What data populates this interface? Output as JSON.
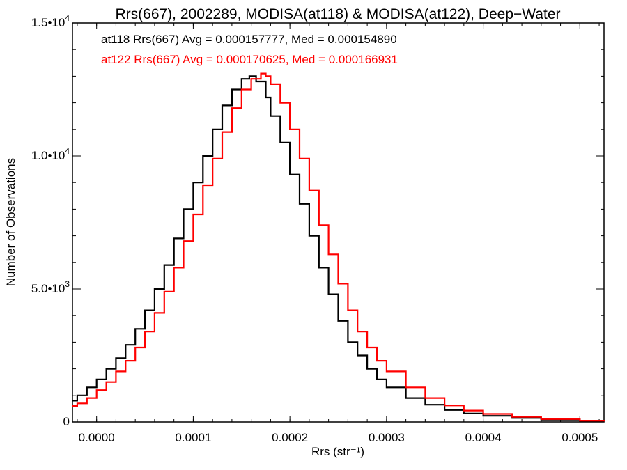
{
  "chart_data": {
    "type": "line",
    "title": "Rrs(667), 2002289, MODISA(at118) & MODISA(at122), Deep−Water",
    "xlabel": "Rrs (str⁻¹)",
    "ylabel": "Number of Observations",
    "xlim": [
      -2.5e-05,
      0.000525
    ],
    "ylim": [
      0,
      15000
    ],
    "x_ticks": [
      0.0,
      0.0001,
      0.0002,
      0.0003,
      0.0004,
      0.0005
    ],
    "x_tick_labels": [
      "0.0000",
      "0.0001",
      "0.0002",
      "0.0003",
      "0.0004",
      "0.0005"
    ],
    "y_ticks": [
      0,
      5000,
      10000,
      15000
    ],
    "y_tick_labels": [
      {
        "mantissa": "0",
        "exponent": ""
      },
      {
        "mantissa": "5.0•1 0",
        "exponent": "3"
      },
      {
        "mantissa": "1.0•1 0",
        "exponent": "4"
      },
      {
        "mantissa": "1.5•1 0",
        "exponent": "4"
      }
    ],
    "annotations": [
      "at118 Rrs(667) Avg = 0.000157777, Med = 0.000154890",
      "at122 Rrs(667) Avg = 0.000170625, Med = 0.000166931"
    ],
    "series": [
      {
        "name": "at118",
        "color": "#000000",
        "x": [
          -2.5e-05,
          -2e-05,
          -1e-05,
          0.0,
          1e-05,
          2e-05,
          3e-05,
          4e-05,
          5e-05,
          6e-05,
          7e-05,
          8e-05,
          9e-05,
          0.0001,
          0.00011,
          0.00012,
          0.00013,
          0.00014,
          0.00015,
          0.000158,
          0.000165,
          0.000175,
          0.00018,
          0.00019,
          0.0002,
          0.00021,
          0.00022,
          0.00023,
          0.00024,
          0.00025,
          0.00026,
          0.00027,
          0.00028,
          0.00029,
          0.0003,
          0.00032,
          0.00034,
          0.00036,
          0.00038,
          0.0004,
          0.00043,
          0.00046,
          0.0005,
          0.000525
        ],
        "y": [
          800,
          1000,
          1300,
          1600,
          2000,
          2400,
          2900,
          3500,
          4200,
          5000,
          5900,
          6900,
          8000,
          9000,
          10000,
          11000,
          11900,
          12500,
          12900,
          13000,
          12800,
          12200,
          11500,
          10500,
          9300,
          8200,
          7000,
          5800,
          4800,
          3800,
          3000,
          2500,
          2000,
          1600,
          1300,
          900,
          650,
          450,
          320,
          230,
          150,
          90,
          40,
          20
        ]
      },
      {
        "name": "at122",
        "color": "#ff0000",
        "x": [
          -2.5e-05,
          -2e-05,
          -1e-05,
          0.0,
          1e-05,
          2e-05,
          3e-05,
          4e-05,
          5e-05,
          6e-05,
          7e-05,
          8e-05,
          9e-05,
          0.0001,
          0.00011,
          0.00012,
          0.00013,
          0.00014,
          0.00015,
          0.00016,
          0.00017,
          0.000175,
          0.00018,
          0.00019,
          0.0002,
          0.00021,
          0.00022,
          0.00023,
          0.00024,
          0.00025,
          0.00026,
          0.00027,
          0.00028,
          0.00029,
          0.0003,
          0.00032,
          0.00034,
          0.00036,
          0.00038,
          0.0004,
          0.00043,
          0.00046,
          0.0005,
          0.000525
        ],
        "y": [
          600,
          700,
          900,
          1200,
          1500,
          1900,
          2300,
          2800,
          3400,
          4100,
          4900,
          5800,
          6800,
          7800,
          8900,
          9900,
          10900,
          11800,
          12500,
          12900,
          13100,
          13000,
          12700,
          12000,
          11000,
          9900,
          8700,
          7400,
          6300,
          5200,
          4200,
          3400,
          2800,
          2300,
          1900,
          1300,
          900,
          620,
          430,
          300,
          190,
          110,
          50,
          20
        ]
      }
    ]
  }
}
